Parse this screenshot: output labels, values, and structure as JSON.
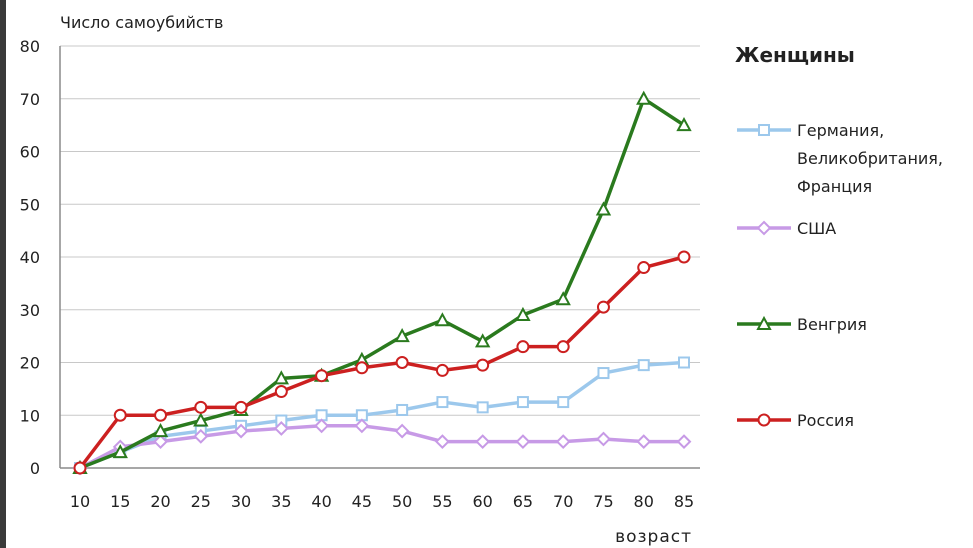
{
  "chart_data": {
    "type": "line",
    "title": "Женщины",
    "ylabel": "Число самоубийств",
    "xlabel": "возраст",
    "x": [
      10,
      15,
      20,
      25,
      30,
      35,
      40,
      45,
      50,
      55,
      60,
      65,
      70,
      75,
      80,
      85
    ],
    "ylim": [
      0,
      80
    ],
    "yticks": [
      0,
      10,
      20,
      30,
      40,
      50,
      60,
      70,
      80
    ],
    "grid": "horizontal",
    "legend_position": "right",
    "series": [
      {
        "name": "Германия, Великобритания, Франция",
        "name_lines": [
          "Германия,",
          "Великобритания,",
          "Франция"
        ],
        "color": "#9cc8ec",
        "marker": "square",
        "values": [
          0,
          3,
          6,
          7,
          8,
          9,
          10,
          10,
          11,
          12.5,
          11.5,
          12.5,
          12.5,
          18,
          19.5,
          20
        ]
      },
      {
        "name": "США",
        "name_lines": [
          "США"
        ],
        "color": "#c79ae6",
        "marker": "diamond",
        "values": [
          0,
          4,
          5,
          6,
          7,
          7.5,
          8,
          8,
          7,
          5,
          5,
          5,
          5,
          5.5,
          5,
          5
        ]
      },
      {
        "name": "Венгрия",
        "name_lines": [
          "Венгрия"
        ],
        "color": "#2a7a1e",
        "marker": "triangle",
        "values": [
          0,
          3,
          7,
          9,
          11,
          17,
          17.5,
          20.5,
          25,
          28,
          24,
          29,
          32,
          49,
          70,
          65
        ]
      },
      {
        "name": "Россия",
        "name_lines": [
          "Россия"
        ],
        "color": "#cc2020",
        "marker": "circle",
        "values": [
          0,
          10,
          10,
          11.5,
          11.5,
          14.5,
          17.5,
          19,
          20,
          18.5,
          19.5,
          23,
          23,
          30.5,
          38,
          40
        ]
      }
    ]
  }
}
